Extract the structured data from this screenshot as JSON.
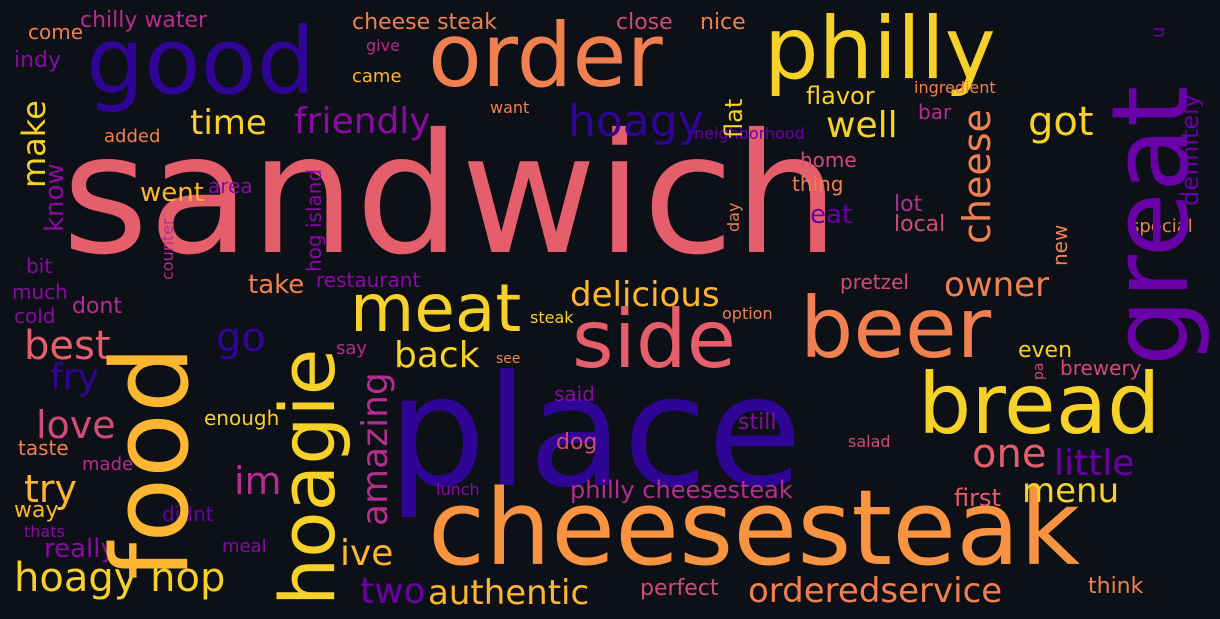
{
  "background": "#0d1017",
  "palette": {
    "pink": "#e45f6b",
    "indigo": "#2f0596",
    "orange": "#f89441",
    "salmon": "#f0804f",
    "yellow": "#f6d12a",
    "gold": "#fcb632",
    "purple": "#8b0aa5",
    "magenta": "#b42e8e",
    "rose": "#cf4c74",
    "violet": "#6a00a8"
  },
  "words": [
    "sandwich",
    "place",
    "cheesesteak",
    "food",
    "great",
    "beer",
    "bread",
    "philly",
    "good",
    "order",
    "hoagie",
    "side",
    "meat",
    "hoagy hop",
    "authentic",
    "orderedservice",
    "delicious",
    "cheese",
    "owner",
    "hoagy",
    "friendly",
    "time",
    "well",
    "got",
    "try",
    "love",
    "best",
    "back",
    "one",
    "little",
    "menu",
    "amazing",
    "go",
    "fry",
    "ive",
    "two",
    "im",
    "make",
    "philly cheesesteak",
    "flavor",
    "went",
    "know",
    "take",
    "first",
    "really",
    "definitely",
    "eat",
    "restaurant",
    "cheese steak",
    "close",
    "nice",
    "chilly water",
    "come",
    "indy",
    "came",
    "flat",
    "want",
    "ingredient",
    "bar",
    "neighborhood",
    "added",
    "hog island",
    "home",
    "thing",
    "area",
    "lot",
    "local",
    "counter",
    "day",
    "special",
    "new",
    "pretzel",
    "bit",
    "much",
    "dont",
    "cold",
    "steak",
    "option",
    "say",
    "see",
    "pa",
    "brewery",
    "even",
    "enough",
    "said",
    "still",
    "taste",
    "made",
    "dog",
    "salad",
    "lunch",
    "didnt",
    "way",
    "thats",
    "meal",
    "perfect",
    "think",
    "give",
    "u"
  ]
}
